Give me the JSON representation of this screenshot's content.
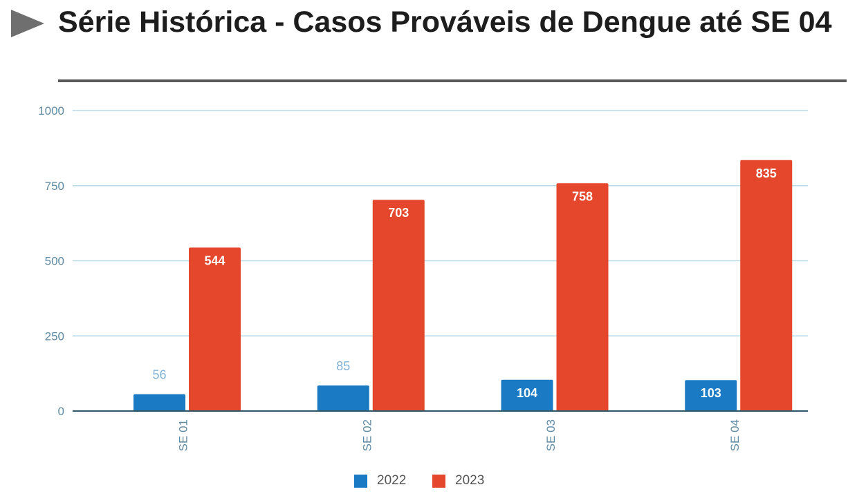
{
  "title": "Série Histórica - Casos Prováveis de Dengue até SE 04",
  "colors": {
    "series_2022": "#1a7ac4",
    "series_2023": "#e4472c",
    "gridline": "#b9d8e8",
    "axis": "#2f5666",
    "tick_text": "#5f8aa3",
    "label_outside": "#7fb3d8"
  },
  "chart_data": {
    "type": "bar",
    "title": "Série Histórica - Casos Prováveis de Dengue até SE 04",
    "categories": [
      "SE 01",
      "SE 02",
      "SE 03",
      "SE 04"
    ],
    "series": [
      {
        "name": "2022",
        "values": [
          56,
          85,
          104,
          103
        ]
      },
      {
        "name": "2023",
        "values": [
          544,
          703,
          758,
          835
        ]
      }
    ],
    "ylim": [
      0,
      1000
    ],
    "yticks": [
      0,
      250,
      500,
      750,
      1000
    ],
    "xlabel": "",
    "ylabel": "",
    "grid": true,
    "legend": "bottom-center",
    "data_labels": true
  }
}
